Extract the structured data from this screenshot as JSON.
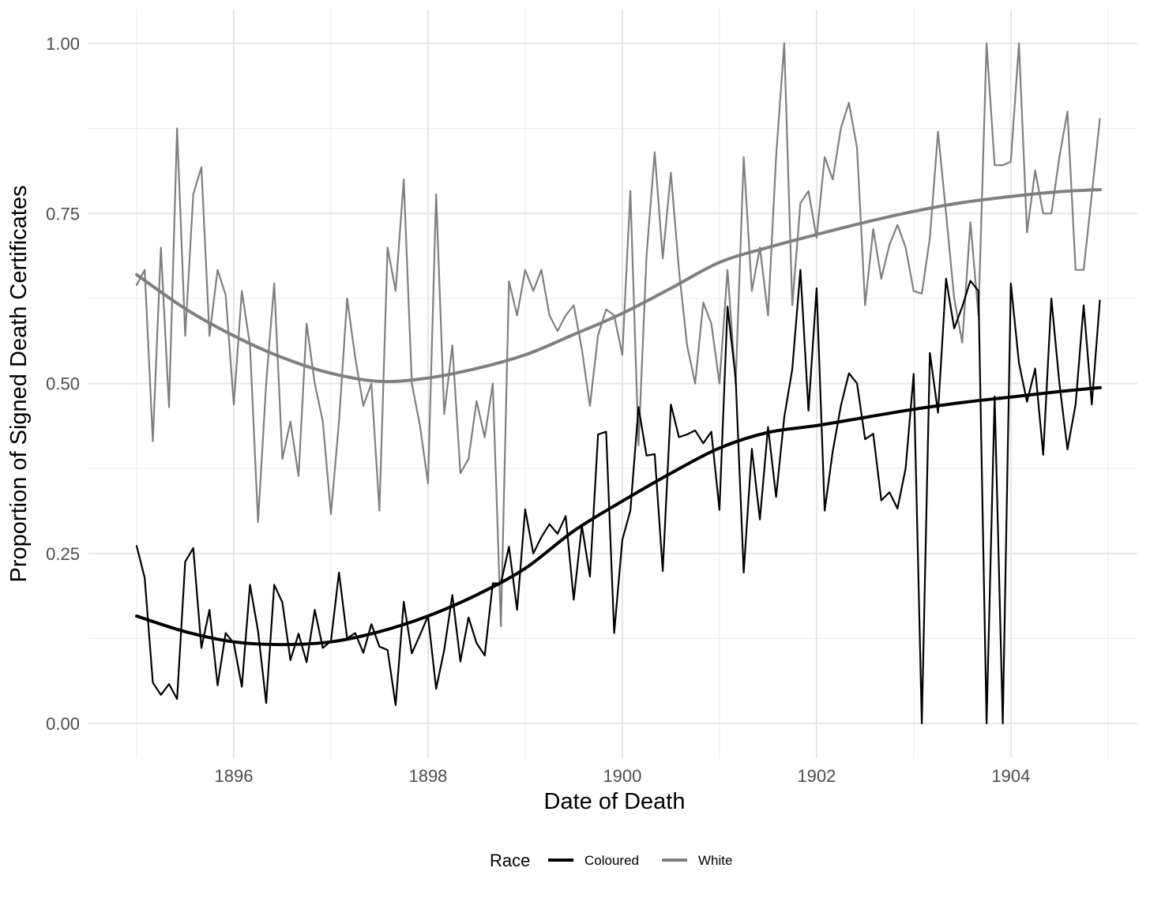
{
  "chart_data": {
    "type": "line",
    "title": "",
    "xlabel": "Date of Death",
    "ylabel": "Proportion of Signed Death Certificates",
    "xlim": [
      1894.7,
      1905.3
    ],
    "ylim": [
      -0.05,
      1.05
    ],
    "x_ticks": [
      1896,
      1898,
      1900,
      1902,
      1904
    ],
    "x_tick_labels": [
      "1896",
      "1898",
      "1900",
      "1902",
      "1904"
    ],
    "y_ticks": [
      0,
      0.25,
      0.5,
      0.75,
      1
    ],
    "y_tick_labels": [
      "0.00",
      "0.25",
      "0.50",
      "0.75",
      "1.00"
    ],
    "grid": true,
    "legend": {
      "title": "Race",
      "position": "bottom",
      "entries": [
        {
          "label": "Coloured",
          "color": "#000000"
        },
        {
          "label": "White",
          "color": "#7f7f7f"
        }
      ]
    },
    "x_start": 1895.0,
    "x_step": 0.08333,
    "series": [
      {
        "name": "White",
        "kind": "monthly",
        "color": "#7f7f7f",
        "values": [
          0.645,
          0.667,
          0.415,
          0.7,
          0.465,
          0.875,
          0.57,
          0.778,
          0.818,
          0.57,
          0.667,
          0.63,
          0.469,
          0.636,
          0.556,
          0.296,
          0.5,
          0.647,
          0.389,
          0.444,
          0.364,
          0.588,
          0.5,
          0.444,
          0.308,
          0.444,
          0.625,
          0.538,
          0.467,
          0.5,
          0.313,
          0.7,
          0.636,
          0.8,
          0.5,
          0.438,
          0.353,
          0.778,
          0.455,
          0.556,
          0.368,
          0.389,
          0.474,
          0.421,
          0.5,
          0.143,
          0.65,
          0.6,
          0.667,
          0.636,
          0.667,
          0.6,
          0.577,
          0.6,
          0.615,
          0.55,
          0.467,
          0.571,
          0.609,
          0.6,
          0.542,
          0.783,
          0.409,
          0.688,
          0.84,
          0.684,
          0.81,
          0.667,
          0.556,
          0.5,
          0.619,
          0.588,
          0.5,
          0.667,
          0.5,
          0.833,
          0.636,
          0.7,
          0.6,
          0.833,
          1.0,
          0.615,
          0.765,
          0.783,
          0.714,
          0.833,
          0.8,
          0.875,
          0.913,
          0.846,
          0.615,
          0.727,
          0.654,
          0.704,
          0.733,
          0.7,
          0.636,
          0.632,
          0.714,
          0.87,
          0.75,
          0.625,
          0.56,
          0.737,
          0.6,
          1.0,
          0.821,
          0.821,
          0.826,
          1.0,
          0.722,
          0.813,
          0.75,
          0.75,
          0.833,
          0.9,
          0.667,
          0.667,
          0.778,
          0.889
        ]
      },
      {
        "name": "Coloured",
        "kind": "monthly",
        "color": "#000000",
        "values": [
          0.261,
          0.214,
          0.06,
          0.042,
          0.058,
          0.036,
          0.238,
          0.258,
          0.111,
          0.167,
          0.056,
          0.133,
          0.118,
          0.054,
          0.204,
          0.136,
          0.03,
          0.204,
          0.178,
          0.093,
          0.132,
          0.09,
          0.167,
          0.111,
          0.121,
          0.222,
          0.125,
          0.133,
          0.104,
          0.146,
          0.113,
          0.108,
          0.027,
          0.179,
          0.103,
          0.13,
          0.158,
          0.051,
          0.108,
          0.189,
          0.091,
          0.156,
          0.118,
          0.1,
          0.206,
          0.206,
          0.26,
          0.167,
          0.315,
          0.25,
          0.274,
          0.293,
          0.279,
          0.305,
          0.182,
          0.291,
          0.216,
          0.425,
          0.429,
          0.133,
          0.27,
          0.313,
          0.465,
          0.394,
          0.396,
          0.224,
          0.469,
          0.421,
          0.425,
          0.431,
          0.412,
          0.429,
          0.314,
          0.613,
          0.508,
          0.222,
          0.404,
          0.3,
          0.436,
          0.333,
          0.45,
          0.521,
          0.667,
          0.46,
          0.64,
          0.313,
          0.4,
          0.467,
          0.515,
          0.5,
          0.418,
          0.426,
          0.328,
          0.34,
          0.316,
          0.375,
          0.514,
          0.0,
          0.545,
          0.457,
          0.654,
          0.581,
          0.613,
          0.651,
          0.636,
          0.0,
          0.481,
          0.0,
          0.647,
          0.53,
          0.473,
          0.522,
          0.395,
          0.625,
          0.5,
          0.403,
          0.469,
          0.615,
          0.469,
          0.622
        ]
      },
      {
        "name": "White",
        "kind": "smooth",
        "color": "#7f7f7f",
        "x": [
          1895.0,
          1895.5,
          1896.0,
          1896.5,
          1897.0,
          1897.5,
          1898.0,
          1898.5,
          1899.0,
          1899.5,
          1900.0,
          1900.5,
          1901.0,
          1901.5,
          1902.0,
          1902.5,
          1903.0,
          1903.5,
          1904.0,
          1904.5,
          1904.92
        ],
        "values": [
          0.66,
          0.61,
          0.57,
          0.538,
          0.515,
          0.503,
          0.508,
          0.522,
          0.542,
          0.572,
          0.603,
          0.64,
          0.678,
          0.7,
          0.719,
          0.737,
          0.753,
          0.766,
          0.775,
          0.782,
          0.785
        ]
      },
      {
        "name": "Coloured",
        "kind": "smooth",
        "color": "#000000",
        "x": [
          1895.0,
          1895.5,
          1896.0,
          1896.5,
          1897.0,
          1897.5,
          1898.0,
          1898.5,
          1899.0,
          1899.5,
          1900.0,
          1900.5,
          1901.0,
          1901.5,
          1902.0,
          1902.5,
          1903.0,
          1903.5,
          1904.0,
          1904.5,
          1904.92
        ],
        "values": [
          0.158,
          0.135,
          0.12,
          0.116,
          0.12,
          0.135,
          0.158,
          0.189,
          0.228,
          0.283,
          0.327,
          0.368,
          0.405,
          0.428,
          0.438,
          0.45,
          0.462,
          0.472,
          0.48,
          0.488,
          0.494
        ]
      }
    ]
  }
}
